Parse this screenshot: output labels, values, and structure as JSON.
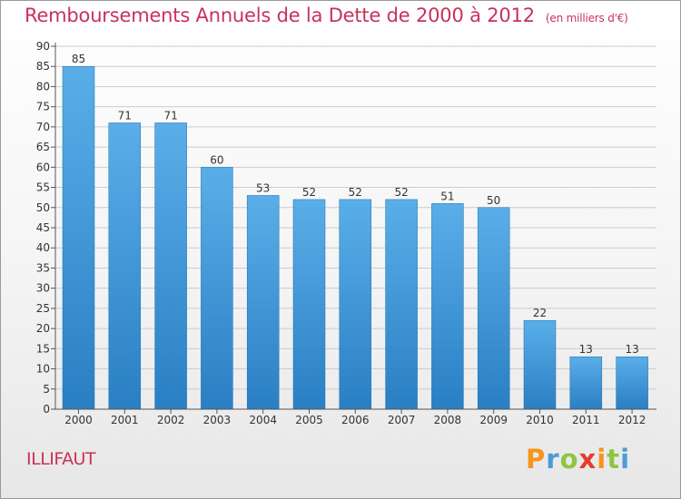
{
  "title": "Remboursements Annuels de la Dette de 2000 à 2012",
  "subtitle": "(en milliers d'€)",
  "commune": "ILLIFAUT",
  "logo": {
    "letters": [
      "P",
      "r",
      "o",
      "x",
      "i",
      "t",
      "i"
    ]
  },
  "colors": {
    "title": "#c8325a",
    "bar_top": "#5aaee8",
    "bar_bottom": "#2a7fc4",
    "axis": "#555555",
    "grid": "#cccccc"
  },
  "chart_data": {
    "type": "bar",
    "categories": [
      "2000",
      "2001",
      "2002",
      "2003",
      "2004",
      "2005",
      "2006",
      "2007",
      "2008",
      "2009",
      "2010",
      "2011",
      "2012"
    ],
    "values": [
      85,
      71,
      71,
      60,
      53,
      52,
      52,
      52,
      51,
      50,
      22,
      13,
      13
    ],
    "data_labels": [
      "85",
      "71",
      "71",
      "60",
      "53",
      "52",
      "52",
      "52",
      "51",
      "50",
      "22",
      "13",
      "13"
    ],
    "ylim": [
      0,
      90
    ],
    "yticks": [
      0,
      5,
      10,
      15,
      20,
      25,
      30,
      35,
      40,
      45,
      50,
      55,
      60,
      65,
      70,
      75,
      80,
      85,
      90
    ],
    "ytick_labels": [
      "0",
      "5",
      "10",
      "15",
      "20",
      "25",
      "30",
      "35",
      "40",
      "45",
      "50",
      "55",
      "60",
      "65",
      "70",
      "75",
      "80",
      "85",
      "90"
    ],
    "grid": true,
    "grid_axis": "y",
    "xlabel": "",
    "ylabel": ""
  }
}
